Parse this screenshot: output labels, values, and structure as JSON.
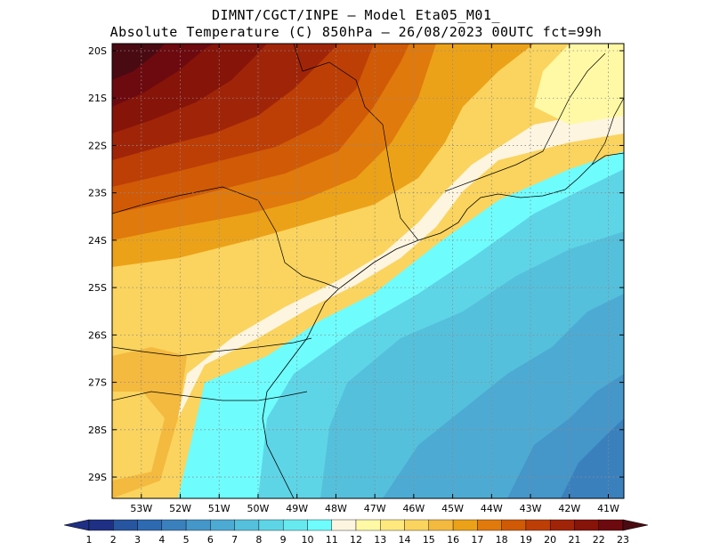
{
  "title": {
    "line1": "DIMNT/CGCT/INPE –  Model Eta05_M01_",
    "line2": "Absolute Temperature (C) 850hPa –  26/08/2023 00UTC fct=99h"
  },
  "map": {
    "lon_range": [
      -53.75,
      -40.6
    ],
    "lat_range": [
      -29.45,
      -19.85
    ],
    "lat_ticks": [
      {
        "value": -20,
        "label": "20S"
      },
      {
        "value": -21,
        "label": "21S"
      },
      {
        "value": -22,
        "label": "22S"
      },
      {
        "value": -23,
        "label": "23S"
      },
      {
        "value": -24,
        "label": "24S"
      },
      {
        "value": -25,
        "label": "25S"
      },
      {
        "value": -26,
        "label": "26S"
      },
      {
        "value": -27,
        "label": "27S"
      },
      {
        "value": -28,
        "label": "28S"
      },
      {
        "value": -29,
        "label": "29S"
      }
    ],
    "lon_ticks": [
      {
        "value": -53,
        "label": "53W"
      },
      {
        "value": -52,
        "label": "52W"
      },
      {
        "value": -51,
        "label": "51W"
      },
      {
        "value": -50,
        "label": "50W"
      },
      {
        "value": -49,
        "label": "49W"
      },
      {
        "value": -48,
        "label": "48W"
      },
      {
        "value": -47,
        "label": "47W"
      },
      {
        "value": -46,
        "label": "46W"
      },
      {
        "value": -45,
        "label": "45W"
      },
      {
        "value": -44,
        "label": "44W"
      },
      {
        "value": -43,
        "label": "43W"
      },
      {
        "value": -42,
        "label": "42W"
      },
      {
        "value": -41,
        "label": "41W"
      }
    ]
  },
  "colorbar": {
    "labels": [
      "1",
      "2",
      "3",
      "4",
      "5",
      "6",
      "7",
      "8",
      "9",
      "10",
      "11",
      "12",
      "13",
      "14",
      "15",
      "16",
      "17",
      "18",
      "19",
      "20",
      "21",
      "22",
      "23"
    ],
    "colors": [
      "#1f2f84",
      "#28559f",
      "#2e6ab0",
      "#3a80bd",
      "#4596c9",
      "#4dabd3",
      "#55c0dc",
      "#5ed5e6",
      "#66eaf0",
      "#6ffcfd",
      "#fdf5e0",
      "#fff9a6",
      "#ffe97f",
      "#fad45e",
      "#f4b93f",
      "#eca218",
      "#e07a0c",
      "#d15a06",
      "#bd3f06",
      "#a02508",
      "#861409",
      "#6d0a0f",
      "#4a0a12"
    ]
  }
}
